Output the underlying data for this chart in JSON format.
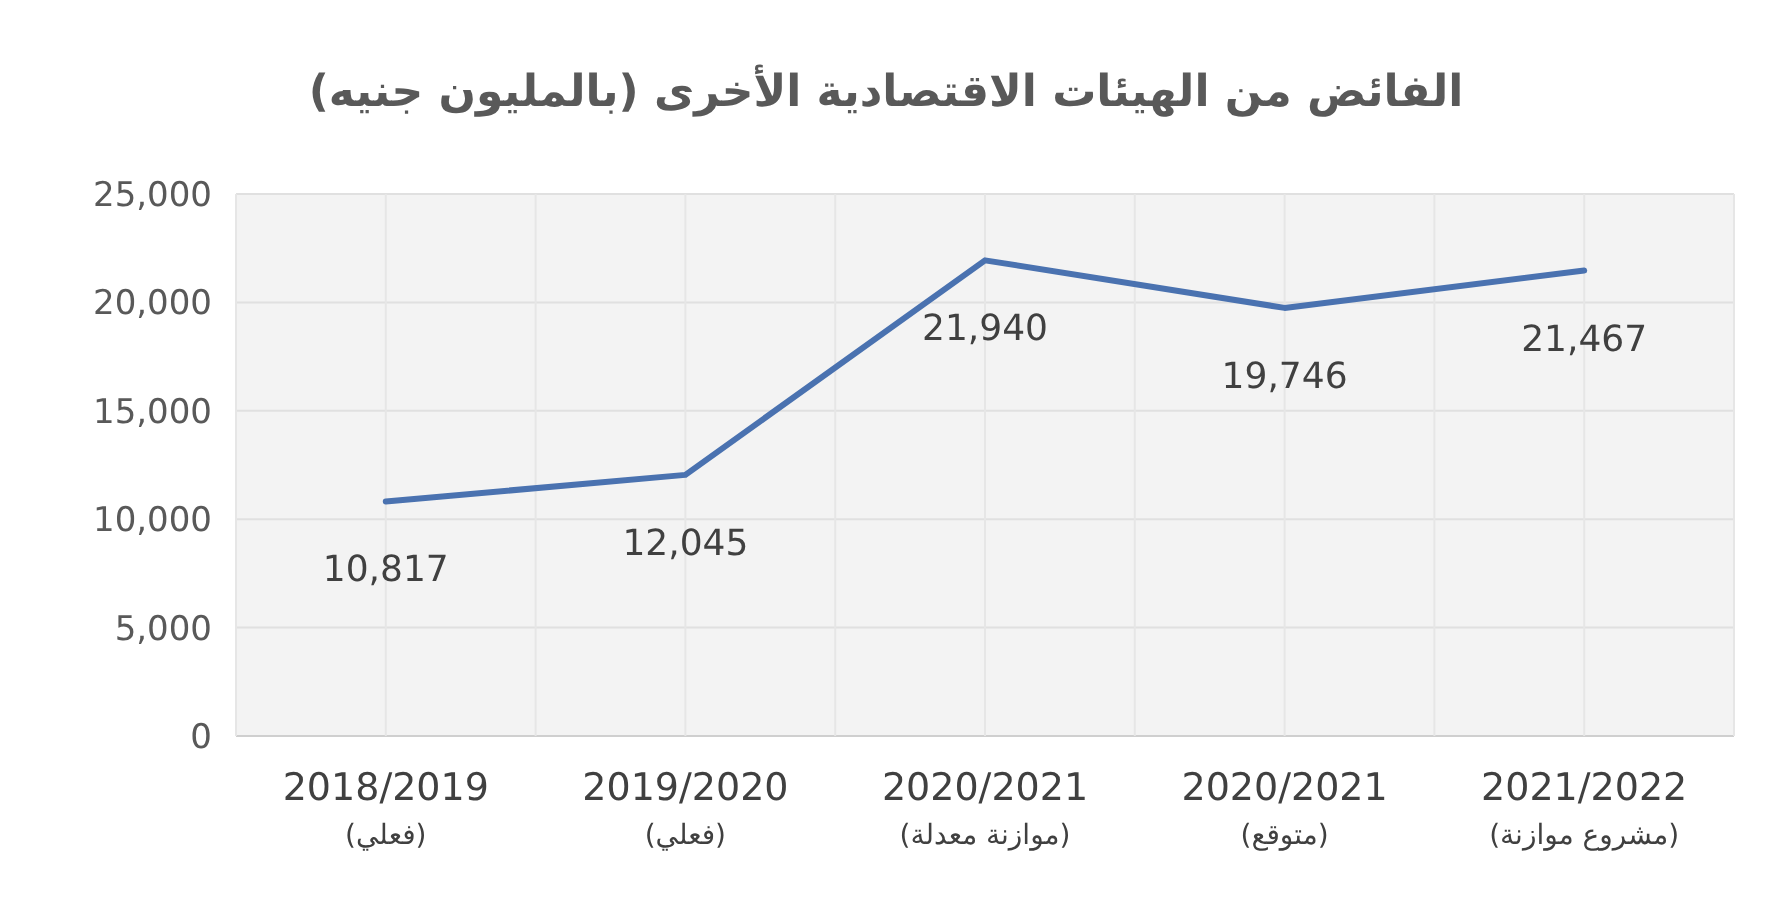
{
  "chart_data": {
    "type": "line",
    "title": "الفائض من الهيئات الاقتصادية الأخرى (بالمليون جنيه)",
    "categories": [
      "2018/2019\n(فعلي)",
      "2019/2020\n(فعلي)",
      "2020/2021\n(موازنة معدلة)",
      "2020/2021\n(متوقع)",
      "2021/2022\n(مشروع موازنة)"
    ],
    "series": [
      {
        "color": "#4a72b0",
        "values": [
          10817,
          12045,
          21940,
          19746,
          21467
        ],
        "value_labels": [
          "10,817",
          "12,045",
          "21,940",
          "19,746",
          "21,467"
        ]
      }
    ],
    "ylim": [
      0,
      25000
    ],
    "yticks": [
      {
        "value": 0,
        "label": "0"
      },
      {
        "value": 5000,
        "label": "5,000"
      },
      {
        "value": 10000,
        "label": "10,000"
      },
      {
        "value": 15000,
        "label": "15,000"
      },
      {
        "value": 20000,
        "label": "20,000"
      },
      {
        "value": 25000,
        "label": "25,000"
      }
    ],
    "grid": true
  }
}
